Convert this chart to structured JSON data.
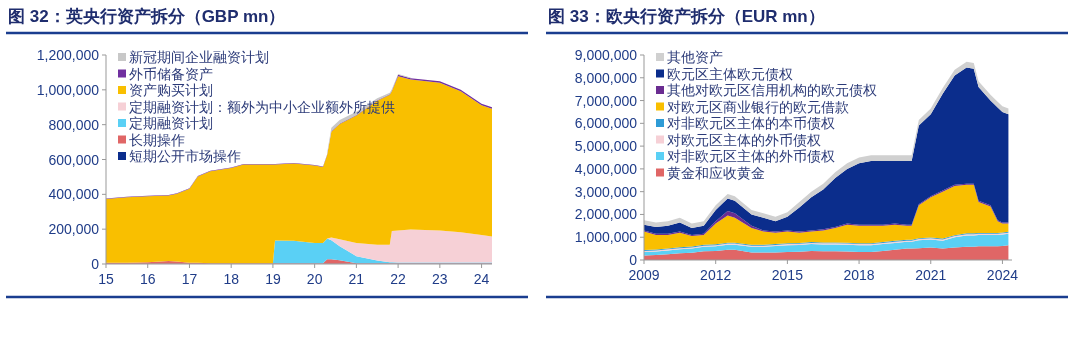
{
  "chart_data": [
    {
      "type": "area",
      "stacked": true,
      "title": "图 32：英央行资产拆分（GBP mn）",
      "legend": "top left",
      "grid": false,
      "xlim": [
        2015,
        2024.25
      ],
      "xticks": [
        {
          "value": 2015,
          "label": "15"
        },
        {
          "value": 2016,
          "label": "16"
        },
        {
          "value": 2017,
          "label": "17"
        },
        {
          "value": 2018,
          "label": "18"
        },
        {
          "value": 2019,
          "label": "19"
        },
        {
          "value": 2020,
          "label": "20"
        },
        {
          "value": 2021,
          "label": "21"
        },
        {
          "value": 2022,
          "label": "22"
        },
        {
          "value": 2023,
          "label": "23"
        },
        {
          "value": 2024,
          "label": "24"
        }
      ],
      "ylim": [
        0,
        1200000
      ],
      "yticks": [
        0,
        {
          "value": 200000,
          "label": "200,000"
        },
        {
          "value": 400000,
          "label": "400,000"
        },
        {
          "value": 600000,
          "label": "600,000"
        },
        {
          "value": 800000,
          "label": "800,000"
        },
        {
          "value": 1000000,
          "label": "1,000,000"
        },
        {
          "value": 1200000,
          "label": "1,200,000"
        }
      ],
      "x": [
        2015,
        2015.5,
        2016,
        2016.5,
        2016.7,
        2017,
        2017.2,
        2017.5,
        2018,
        2018.3,
        2019,
        2019.05,
        2019.5,
        2020,
        2020.2,
        2020.3,
        2020.4,
        2020.6,
        2021,
        2021.5,
        2021.8,
        2021.85,
        2022,
        2022.3,
        2023,
        2023.5,
        2024,
        2024.25
      ],
      "series": [
        {
          "name": "短期公开市场操作",
          "color": "#0b2d8c",
          "values": [
            2000,
            2000,
            2000,
            2000,
            2000,
            2000,
            2000,
            2000,
            2000,
            2000,
            2000,
            2000,
            2000,
            2000,
            2000,
            2000,
            2000,
            2000,
            2000,
            2000,
            2000,
            2000,
            2000,
            2000,
            2000,
            2000,
            2000,
            2000
          ]
        },
        {
          "name": "长期操作",
          "color": "#e06666",
          "values": [
            5000,
            5000,
            8000,
            15000,
            12000,
            5000,
            5000,
            3000,
            3000,
            3000,
            3000,
            3000,
            3000,
            3000,
            3000,
            25000,
            25000,
            20000,
            3000,
            3000,
            3000,
            3000,
            3000,
            3000,
            3000,
            3000,
            3000,
            3000
          ]
        },
        {
          "name": "定期融资计划",
          "color": "#5ad0f5",
          "values": [
            0,
            0,
            0,
            0,
            0,
            0,
            0,
            0,
            0,
            0,
            0,
            130000,
            128000,
            115000,
            115000,
            120000,
            110000,
            80000,
            40000,
            15000,
            5000,
            5000,
            3000,
            3000,
            3000,
            3000,
            3000,
            3000
          ]
        },
        {
          "name": "定期融资计划：额外为中小企业额外所提供",
          "color": "#f6d0d6",
          "values": [
            0,
            0,
            0,
            0,
            0,
            0,
            0,
            0,
            0,
            0,
            0,
            0,
            0,
            0,
            0,
            0,
            15000,
            40000,
            75000,
            90000,
            100000,
            180000,
            185000,
            190000,
            185000,
            175000,
            158000,
            150000
          ]
        },
        {
          "name": "资产购买计划",
          "color": "#f9bf00",
          "values": [
            366000,
            376000,
            379000,
            376000,
            389000,
            425000,
            495000,
            527000,
            546000,
            566000,
            566000,
            436000,
            444000,
            445000,
            437000,
            479000,
            607000,
            662000,
            733000,
            827000,
            862000,
            802000,
            885000,
            861000,
            848000,
            809000,
            746000,
            734000
          ]
        },
        {
          "name": "外币储备资产",
          "color": "#7030a0",
          "values": [
            3000,
            3000,
            3000,
            3000,
            3000,
            3000,
            3000,
            3000,
            3000,
            3000,
            3000,
            3000,
            3000,
            3000,
            3000,
            3000,
            3000,
            3000,
            3000,
            3000,
            3000,
            3000,
            8000,
            8000,
            8000,
            8000,
            8000,
            8000
          ]
        },
        {
          "name": "新冠期间企业融资计划",
          "color": "#c8c8c8",
          "values": [
            null,
            null,
            null,
            null,
            null,
            null,
            null,
            null,
            null,
            null,
            null,
            null,
            null,
            null,
            null,
            10000,
            20000,
            20000,
            18000,
            12000,
            8000,
            8000,
            5000,
            4000,
            null,
            null,
            null,
            null
          ]
        }
      ]
    },
    {
      "type": "area",
      "stacked": true,
      "title": "图 33：欧央行资产拆分（EUR mn）",
      "legend": "top left",
      "grid": false,
      "xlim": [
        2009,
        2024.4
      ],
      "xticks": [
        2009,
        2012,
        2015,
        2018,
        2021,
        2024
      ],
      "ylim": [
        0,
        9000000
      ],
      "yticks": [
        0,
        {
          "value": 1000000,
          "label": "1,000,000"
        },
        {
          "value": 2000000,
          "label": "2,000,000"
        },
        {
          "value": 3000000,
          "label": "3,000,000"
        },
        {
          "value": 4000000,
          "label": "4,000,000"
        },
        {
          "value": 5000000,
          "label": "5,000,000"
        },
        {
          "value": 6000000,
          "label": "6,000,000"
        },
        {
          "value": 7000000,
          "label": "7,000,000"
        },
        {
          "value": 8000000,
          "label": "8,000,000"
        },
        {
          "value": 9000000,
          "label": "9,000,000"
        }
      ],
      "x": [
        2009,
        2009.5,
        2010,
        2010.5,
        2011,
        2011.5,
        2012,
        2012.5,
        2012.8,
        2013.5,
        2014,
        2014.5,
        2015,
        2015.5,
        2016,
        2016.5,
        2017,
        2017.5,
        2018,
        2018.5,
        2019,
        2019.5,
        2020,
        2020.2,
        2020.5,
        2021,
        2021.5,
        2022,
        2022.5,
        2022.8,
        2023,
        2023.5,
        2023.8,
        2024,
        2024.25
      ],
      "series": [
        {
          "name": "黄金和应收黄金",
          "color": "#e06666",
          "values": [
            200000,
            220000,
            250000,
            300000,
            320000,
            380000,
            400000,
            450000,
            450000,
            330000,
            330000,
            330000,
            350000,
            360000,
            400000,
            380000,
            380000,
            370000,
            350000,
            350000,
            400000,
            450000,
            500000,
            500000,
            520000,
            550000,
            500000,
            550000,
            580000,
            580000,
            600000,
            600000,
            600000,
            620000,
            650000
          ]
        },
        {
          "name": "对非欧元区主体的外币债权",
          "color": "#5ad0f5",
          "values": [
            150000,
            150000,
            170000,
            170000,
            180000,
            200000,
            200000,
            220000,
            220000,
            250000,
            250000,
            280000,
            300000,
            300000,
            300000,
            300000,
            300000,
            300000,
            300000,
            300000,
            300000,
            300000,
            300000,
            300000,
            350000,
            350000,
            350000,
            450000,
            500000,
            500000,
            500000,
            500000,
            500000,
            500000,
            500000
          ]
        },
        {
          "name": "对欧元区主体的外币债权",
          "color": "#f6d0d6",
          "values": [
            50000,
            50000,
            50000,
            50000,
            50000,
            50000,
            50000,
            50000,
            50000,
            50000,
            50000,
            50000,
            50000,
            50000,
            50000,
            50000,
            50000,
            50000,
            50000,
            50000,
            50000,
            50000,
            50000,
            50000,
            50000,
            50000,
            50000,
            50000,
            50000,
            50000,
            50000,
            50000,
            50000,
            50000,
            50000
          ]
        },
        {
          "name": "对非欧元区主体的本币债权",
          "color": "#2e9bd6",
          "values": [
            40000,
            40000,
            40000,
            40000,
            40000,
            40000,
            40000,
            40000,
            40000,
            40000,
            40000,
            40000,
            40000,
            40000,
            40000,
            40000,
            40000,
            40000,
            40000,
            40000,
            40000,
            40000,
            40000,
            40000,
            40000,
            40000,
            40000,
            40000,
            40000,
            40000,
            40000,
            40000,
            40000,
            40000,
            40000
          ]
        },
        {
          "name": "对欧元区商业银行的欧元借款",
          "color": "#f9bf00",
          "values": [
            810000,
            640000,
            590000,
            640000,
            460000,
            430000,
            910000,
            1190000,
            1090000,
            730000,
            580000,
            500000,
            510000,
            450000,
            460000,
            530000,
            630000,
            790000,
            760000,
            760000,
            710000,
            710000,
            610000,
            610000,
            1440000,
            1760000,
            2060000,
            2160000,
            2130000,
            2130000,
            1360000,
            1160000,
            510000,
            390000,
            360000
          ]
        },
        {
          "name": "其他对欧元区信用机构的欧元债权",
          "color": "#6a2c91",
          "values": [
            50000,
            50000,
            50000,
            50000,
            50000,
            50000,
            100000,
            200000,
            200000,
            100000,
            50000,
            50000,
            50000,
            50000,
            50000,
            50000,
            50000,
            50000,
            50000,
            50000,
            50000,
            50000,
            50000,
            50000,
            50000,
            50000,
            50000,
            50000,
            50000,
            50000,
            50000,
            50000,
            50000,
            50000,
            50000
          ]
        },
        {
          "name": "欧元区主体欧元债权",
          "color": "#0b2d8c",
          "values": [
            250000,
            300000,
            350000,
            400000,
            300000,
            350000,
            500000,
            550000,
            550000,
            500000,
            550000,
            450000,
            600000,
            1050000,
            1450000,
            1750000,
            2150000,
            2400000,
            2700000,
            2800000,
            2800000,
            2750000,
            2800000,
            2800000,
            3450000,
            3600000,
            4250000,
            4800000,
            5100000,
            5050000,
            5000000,
            4600000,
            4950000,
            4850000,
            4750000
          ]
        },
        {
          "name": "其他资产",
          "color": "#d0d0d0",
          "values": [
            200000,
            200000,
            200000,
            200000,
            200000,
            200000,
            200000,
            200000,
            200000,
            200000,
            200000,
            200000,
            200000,
            250000,
            250000,
            250000,
            250000,
            250000,
            250000,
            250000,
            250000,
            250000,
            250000,
            250000,
            250000,
            250000,
            250000,
            250000,
            250000,
            250000,
            250000,
            250000,
            250000,
            250000,
            250000
          ]
        }
      ]
    }
  ]
}
